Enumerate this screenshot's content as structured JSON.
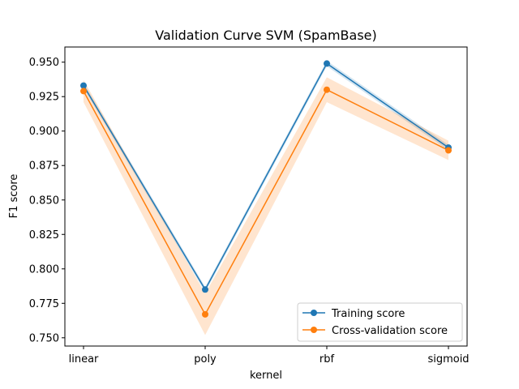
{
  "chart_data": {
    "type": "line",
    "title": "Validation Curve SVM (SpamBase)",
    "xlabel": "kernel",
    "ylabel": "F1 score",
    "categories": [
      "linear",
      "poly",
      "rbf",
      "sigmoid"
    ],
    "ylim": [
      0.744,
      0.961
    ],
    "yticks": [
      0.75,
      0.775,
      0.8,
      0.825,
      0.85,
      0.875,
      0.9,
      0.925,
      0.95
    ],
    "ytick_labels": [
      "0.750",
      "0.775",
      "0.800",
      "0.825",
      "0.850",
      "0.875",
      "0.900",
      "0.925",
      "0.950"
    ],
    "grid": false,
    "legend_position": "lower-right",
    "series": [
      {
        "name": "Training score",
        "color": "#1f77b4",
        "values": [
          0.933,
          0.785,
          0.949,
          0.888
        ],
        "band_lower": [
          0.931,
          0.783,
          0.947,
          0.886
        ],
        "band_upper": [
          0.935,
          0.787,
          0.951,
          0.89
        ]
      },
      {
        "name": "Cross-validation score",
        "color": "#ff7f0e",
        "values": [
          0.929,
          0.767,
          0.93,
          0.886
        ],
        "band_lower": [
          0.921,
          0.752,
          0.921,
          0.879
        ],
        "band_upper": [
          0.937,
          0.782,
          0.939,
          0.893
        ]
      }
    ]
  }
}
